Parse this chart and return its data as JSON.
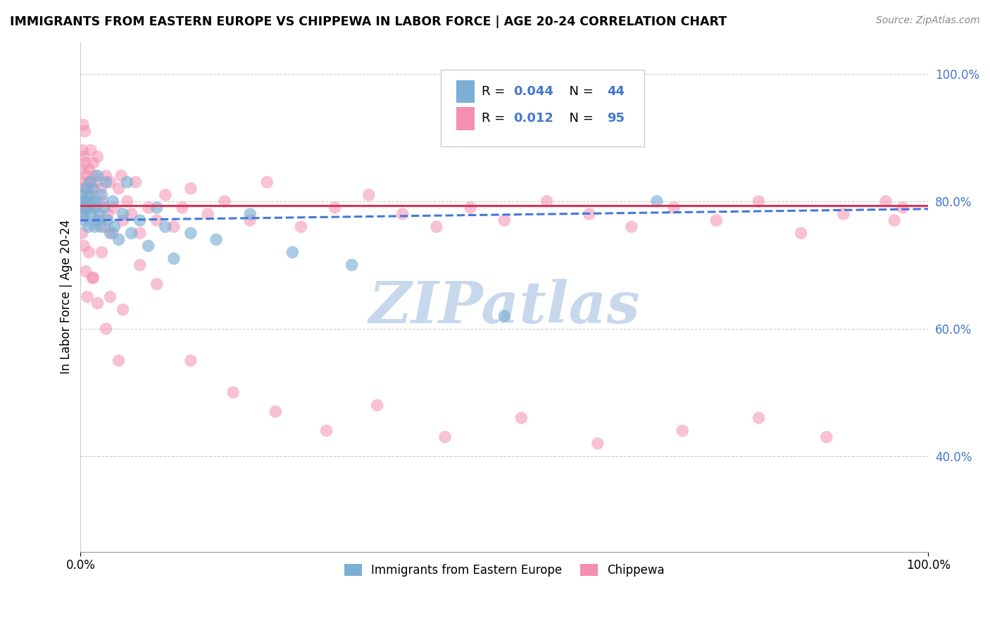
{
  "title": "IMMIGRANTS FROM EASTERN EUROPE VS CHIPPEWA IN LABOR FORCE | AGE 20-24 CORRELATION CHART",
  "source": "Source: ZipAtlas.com",
  "ylabel": "In Labor Force | Age 20-24",
  "legend_labels": [
    "Immigrants from Eastern Europe",
    "Chippewa"
  ],
  "blue_R": 0.044,
  "blue_N": 44,
  "pink_R": 0.012,
  "pink_N": 95,
  "blue_color": "#7bafd4",
  "pink_color": "#f48fb1",
  "blue_line_color": "#4477dd",
  "pink_line_color": "#dd3355",
  "blue_line_style": "--",
  "pink_line_style": "-",
  "xlim": [
    0.0,
    1.0
  ],
  "ylim": [
    0.25,
    1.05
  ],
  "yticks": [
    0.4,
    0.6,
    0.8,
    1.0
  ],
  "ytick_labels": [
    "40.0%",
    "60.0%",
    "80.0%",
    "100.0%"
  ],
  "blue_x": [
    0.001,
    0.002,
    0.003,
    0.004,
    0.005,
    0.006,
    0.007,
    0.008,
    0.009,
    0.01,
    0.011,
    0.012,
    0.013,
    0.015,
    0.016,
    0.017,
    0.018,
    0.019,
    0.02,
    0.022,
    0.024,
    0.025,
    0.028,
    0.03,
    0.032,
    0.035,
    0.038,
    0.04,
    0.045,
    0.05,
    0.055,
    0.06,
    0.07,
    0.08,
    0.09,
    0.1,
    0.11,
    0.13,
    0.16,
    0.2,
    0.25,
    0.32,
    0.5,
    0.68
  ],
  "blue_y": [
    0.79,
    0.81,
    0.78,
    0.8,
    0.77,
    0.82,
    0.8,
    0.79,
    0.76,
    0.81,
    0.83,
    0.78,
    0.8,
    0.82,
    0.79,
    0.76,
    0.8,
    0.77,
    0.84,
    0.78,
    0.76,
    0.81,
    0.79,
    0.83,
    0.77,
    0.75,
    0.8,
    0.76,
    0.74,
    0.78,
    0.83,
    0.75,
    0.77,
    0.73,
    0.79,
    0.76,
    0.71,
    0.75,
    0.74,
    0.78,
    0.72,
    0.7,
    0.62,
    0.8
  ],
  "pink_x": [
    0.001,
    0.001,
    0.002,
    0.002,
    0.003,
    0.003,
    0.004,
    0.004,
    0.005,
    0.005,
    0.006,
    0.006,
    0.007,
    0.008,
    0.009,
    0.01,
    0.011,
    0.012,
    0.013,
    0.015,
    0.016,
    0.018,
    0.019,
    0.02,
    0.022,
    0.024,
    0.026,
    0.028,
    0.03,
    0.032,
    0.035,
    0.038,
    0.04,
    0.045,
    0.048,
    0.05,
    0.055,
    0.06,
    0.065,
    0.07,
    0.08,
    0.09,
    0.1,
    0.11,
    0.12,
    0.13,
    0.15,
    0.17,
    0.2,
    0.22,
    0.26,
    0.3,
    0.34,
    0.38,
    0.42,
    0.46,
    0.5,
    0.55,
    0.6,
    0.65,
    0.7,
    0.75,
    0.8,
    0.85,
    0.9,
    0.95,
    0.96,
    0.97,
    0.015,
    0.025,
    0.035,
    0.05,
    0.07,
    0.09,
    0.13,
    0.18,
    0.23,
    0.29,
    0.35,
    0.43,
    0.52,
    0.61,
    0.71,
    0.8,
    0.88,
    0.002,
    0.004,
    0.006,
    0.008,
    0.01,
    0.014,
    0.02,
    0.03,
    0.045
  ],
  "pink_y": [
    0.82,
    0.8,
    0.88,
    0.85,
    0.92,
    0.79,
    0.87,
    0.83,
    0.91,
    0.78,
    0.86,
    0.8,
    0.84,
    0.82,
    0.79,
    0.85,
    0.83,
    0.88,
    0.81,
    0.86,
    0.84,
    0.79,
    0.83,
    0.87,
    0.77,
    0.82,
    0.8,
    0.76,
    0.84,
    0.78,
    0.83,
    0.75,
    0.79,
    0.82,
    0.84,
    0.77,
    0.8,
    0.78,
    0.83,
    0.75,
    0.79,
    0.77,
    0.81,
    0.76,
    0.79,
    0.82,
    0.78,
    0.8,
    0.77,
    0.83,
    0.76,
    0.79,
    0.81,
    0.78,
    0.76,
    0.79,
    0.77,
    0.8,
    0.78,
    0.76,
    0.79,
    0.77,
    0.8,
    0.75,
    0.78,
    0.8,
    0.77,
    0.79,
    0.68,
    0.72,
    0.65,
    0.63,
    0.7,
    0.67,
    0.55,
    0.5,
    0.47,
    0.44,
    0.48,
    0.43,
    0.46,
    0.42,
    0.44,
    0.46,
    0.43,
    0.75,
    0.73,
    0.69,
    0.65,
    0.72,
    0.68,
    0.64,
    0.6,
    0.55
  ],
  "blue_trend_x": [
    0.0,
    1.0
  ],
  "blue_trend_y": [
    0.77,
    0.788
  ],
  "pink_trend_x": [
    0.0,
    1.0
  ],
  "pink_trend_y": [
    0.793,
    0.793
  ],
  "watermark_text": "ZIPatlas",
  "watermark_color": "#c8d8ec",
  "watermark_fontsize": 60
}
